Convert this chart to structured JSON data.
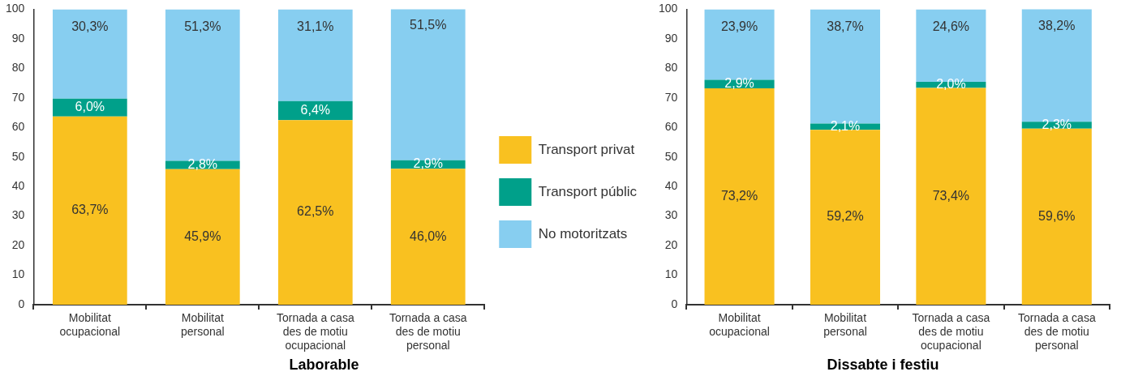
{
  "chart_data": [
    {
      "type": "bar",
      "title": "Laborable",
      "stacked": true,
      "legend": "right",
      "grid": false,
      "categories": [
        "Mobilitat ocupacional",
        "Mobilitat personal",
        "Tornada a casa des de motiu ocupacional",
        "Tornada a casa des de motiu personal"
      ],
      "ylim": [
        0,
        100
      ],
      "yticks": [
        0,
        10,
        20,
        30,
        40,
        50,
        60,
        70,
        80,
        90,
        100
      ],
      "series": [
        {
          "name": "Transport privat",
          "color": "#f9c120",
          "values": [
            63.7,
            45.9,
            62.5,
            46.0
          ],
          "value_labels": [
            "63,7%",
            "45,9%",
            "62,5%",
            "46,0%"
          ]
        },
        {
          "name": "Transport públic",
          "color": "#00a08a",
          "values": [
            6.0,
            2.8,
            6.4,
            2.9
          ],
          "value_labels": [
            "6,0%",
            "2,8%",
            "6,4%",
            "2,9%"
          ]
        },
        {
          "name": "No motoritzats",
          "color": "#87cef0",
          "values": [
            30.3,
            51.3,
            31.1,
            51.5
          ],
          "value_labels": [
            "30,3%",
            "51,3%",
            "31,1%",
            "51,5%"
          ]
        }
      ]
    },
    {
      "type": "bar",
      "title": "Dissabte i festiu",
      "stacked": true,
      "grid": false,
      "categories": [
        "Mobilitat ocupacional",
        "Mobilitat personal",
        "Tornada a casa des de motiu ocupacional",
        "Tornada a casa des de motiu personal"
      ],
      "ylim": [
        0,
        100
      ],
      "yticks": [
        0,
        10,
        20,
        30,
        40,
        50,
        60,
        70,
        80,
        90,
        100
      ],
      "series": [
        {
          "color": "#f9c120",
          "values": [
            73.2,
            59.2,
            73.4,
            59.6
          ],
          "value_labels": [
            "73,2%",
            "59,2%",
            "73,4%",
            "59,6%"
          ]
        },
        {
          "color": "#00a08a",
          "values": [
            2.9,
            2.1,
            2.0,
            2.3
          ],
          "value_labels": [
            "2,9%",
            "2,1%",
            "2,0%",
            "2,3%"
          ]
        },
        {
          "color": "#87cef0",
          "values": [
            23.9,
            38.7,
            24.6,
            38.2
          ],
          "value_labels": [
            "23,9%",
            "38,7%",
            "24,6%",
            "38,2%"
          ]
        }
      ]
    }
  ]
}
